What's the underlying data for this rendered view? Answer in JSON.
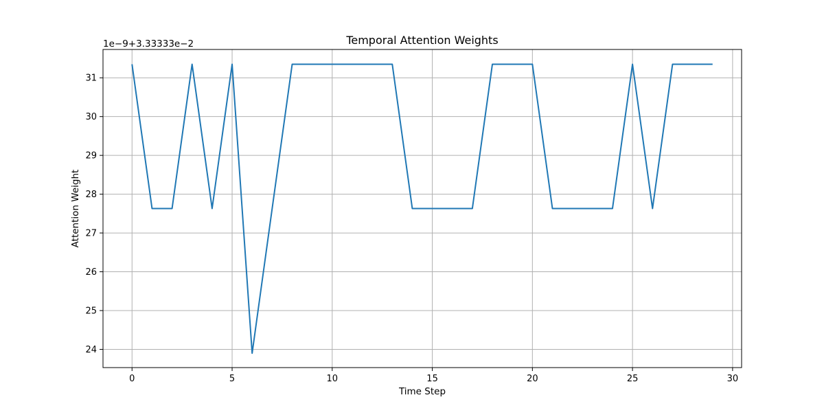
{
  "chart_data": {
    "type": "line",
    "title": "Temporal Attention Weights",
    "xlabel": "Time Step",
    "ylabel": "Attention Weight",
    "offset_text": "1e−9+3.33333e−2",
    "xlim": [
      -1.45,
      30.45
    ],
    "ylim": [
      23.53,
      31.73
    ],
    "x_ticks": [
      0,
      5,
      10,
      15,
      20,
      25,
      30
    ],
    "x_tick_labels": [
      "0",
      "5",
      "10",
      "15",
      "20",
      "25",
      "30"
    ],
    "y_ticks": [
      24,
      25,
      26,
      27,
      28,
      29,
      30,
      31
    ],
    "y_tick_labels": [
      "24",
      "25",
      "26",
      "27",
      "28",
      "29",
      "30",
      "31"
    ],
    "grid": true,
    "series": [
      {
        "color": "#1f77b4",
        "x": [
          0,
          1,
          2,
          3,
          4,
          5,
          6,
          7,
          8,
          9,
          10,
          11,
          12,
          13,
          14,
          15,
          16,
          17,
          18,
          19,
          20,
          21,
          22,
          23,
          24,
          25,
          26,
          27,
          28,
          29
        ],
        "y": [
          31.35,
          27.63,
          27.63,
          31.35,
          27.63,
          31.35,
          23.9,
          27.63,
          31.35,
          31.35,
          31.35,
          31.35,
          31.35,
          31.35,
          27.63,
          27.63,
          27.63,
          27.63,
          31.35,
          31.35,
          31.35,
          27.63,
          27.63,
          27.63,
          27.63,
          31.35,
          27.63,
          31.35,
          31.35,
          31.35
        ]
      }
    ]
  }
}
